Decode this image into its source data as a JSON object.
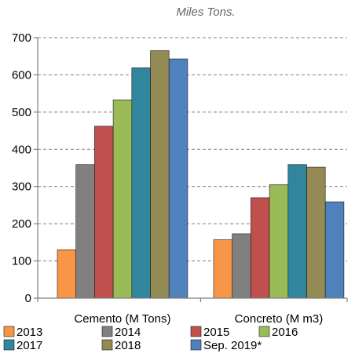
{
  "chart_data": {
    "type": "bar",
    "title": "Miles Tons.",
    "categories": [
      "Cemento (M Tons)",
      "Concreto (M m3)"
    ],
    "ylim": [
      0,
      700
    ],
    "yticks": [
      0,
      100,
      200,
      300,
      400,
      500,
      600,
      700
    ],
    "grid": true,
    "legend_position": "bottom",
    "series": [
      {
        "name": "2013",
        "color": "#f79646",
        "values": [
          130,
          157
        ]
      },
      {
        "name": "2014",
        "color": "#808080",
        "values": [
          359,
          173
        ]
      },
      {
        "name": "2015",
        "color": "#c0504d",
        "values": [
          462,
          270
        ]
      },
      {
        "name": "2016",
        "color": "#9bbb59",
        "values": [
          533,
          305
        ]
      },
      {
        "name": "2017",
        "color": "#31859c",
        "values": [
          619,
          359
        ]
      },
      {
        "name": "2018",
        "color": "#948a54",
        "values": [
          665,
          352
        ]
      },
      {
        "name": "Sep. 2019*",
        "color": "#4f81bd",
        "values": [
          643,
          259
        ]
      }
    ]
  }
}
